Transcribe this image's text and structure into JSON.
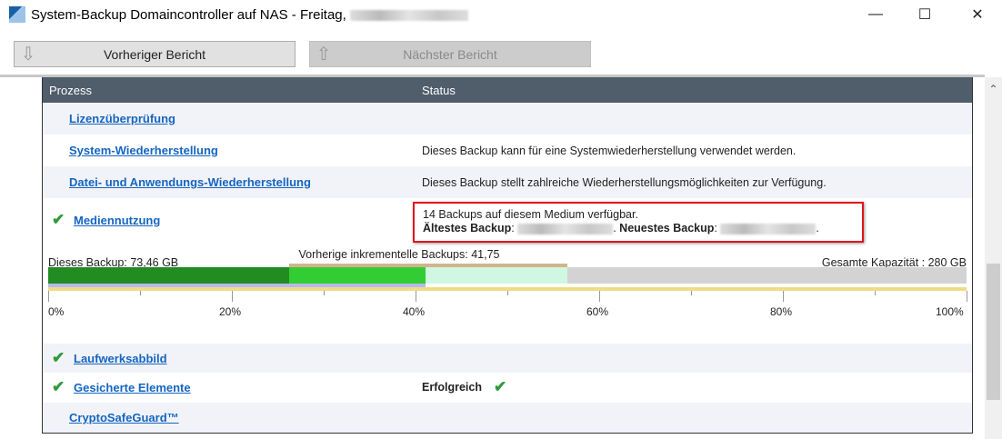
{
  "window": {
    "title": "System-Backup Domaincontroller auf NAS - Freitag,",
    "minimize": "—",
    "maximize": "☐",
    "close": "✕"
  },
  "toolbar": {
    "prev_label": "Vorheriger Bericht",
    "next_label": "Nächster Bericht"
  },
  "table": {
    "headers": [
      "Prozess",
      "Status"
    ],
    "rows": [
      {
        "name": "Lizenzüberprüfung",
        "status": ""
      },
      {
        "name": "System-Wiederherstellung",
        "status": "Dieses Backup kann für eine Systemwiederherstellung verwendet werden."
      },
      {
        "name": "Datei- und Anwendungs-Wiederherstellung",
        "status": "Dieses Backup stellt zahlreiche Wiederherstellungsmöglichkeiten zur Verfügung."
      },
      {
        "name": "Mediennutzung",
        "status": "14 Backups auf diesem Medium verfügbar.",
        "oldest_label": "Ältestes Backup",
        "newest_label": "Neuestes Backup"
      },
      {
        "name": "Laufwerksabbild",
        "status": ""
      },
      {
        "name": "Gesicherte Elemente",
        "status": "Erfolgreich"
      },
      {
        "name": "CryptoSafeGuard™",
        "status": ""
      }
    ]
  },
  "usage": {
    "this_backup": "Dieses Backup: 73,46 GB",
    "previous": "Vorherige inkrementelle Backups: 41,75 GB",
    "total": "Gesamte Kapazität : 280 GB",
    "segments_percent": {
      "this_backup": 26.2,
      "previous": 14.9,
      "other": 15.4
    },
    "ticks": [
      "0%",
      "20%",
      "40%",
      "60%",
      "80%",
      "100%"
    ],
    "colors": {
      "this_backup": "#228b22",
      "previous": "#32cd32",
      "other": "#cff7e2",
      "free": "#d3d3d3",
      "bracket": "#d2b48c",
      "lavender": "#b8b8f0",
      "scale": "#f0dc82"
    }
  }
}
